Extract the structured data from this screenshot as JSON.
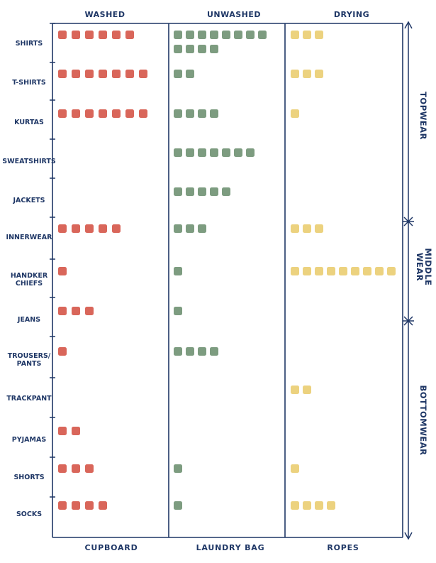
{
  "chart_data": {
    "type": "table",
    "columns": [
      "WASHED",
      "UNWASHED",
      "DRYING"
    ],
    "locations": [
      "CUPBOARD",
      "LAUNDRY BAG",
      "ROPES"
    ],
    "rows": [
      {
        "label": [
          "SHIRTS"
        ],
        "values": [
          6,
          12,
          3
        ]
      },
      {
        "label": [
          "T-SHIRTS"
        ],
        "values": [
          7,
          2,
          3
        ]
      },
      {
        "label": [
          "KURTAS"
        ],
        "values": [
          7,
          4,
          1
        ]
      },
      {
        "label": [
          "SWEATSHIRTS"
        ],
        "values": [
          0,
          7,
          0
        ]
      },
      {
        "label": [
          "JACKETS"
        ],
        "values": [
          0,
          5,
          0
        ]
      },
      {
        "label": [
          "INNERWEAR"
        ],
        "values": [
          5,
          3,
          3
        ]
      },
      {
        "label": [
          "HANDKER",
          "CHIEFS"
        ],
        "values": [
          1,
          1,
          9
        ]
      },
      {
        "label": [
          "JEANS"
        ],
        "values": [
          3,
          1,
          0
        ]
      },
      {
        "label": [
          "TROUSERS/",
          "PANTS"
        ],
        "values": [
          1,
          4,
          0
        ]
      },
      {
        "label": [
          "TRACKPANT"
        ],
        "values": [
          0,
          0,
          2
        ]
      },
      {
        "label": [
          "PYJAMAS"
        ],
        "values": [
          2,
          0,
          0
        ]
      },
      {
        "label": [
          "SHORTS"
        ],
        "values": [
          3,
          1,
          1
        ]
      },
      {
        "label": [
          "SOCKS"
        ],
        "values": [
          4,
          1,
          4
        ]
      }
    ],
    "groups": [
      {
        "label": [
          "TOPWEAR"
        ]
      },
      {
        "label": [
          "MIDDLE",
          "WEAR"
        ]
      },
      {
        "label": [
          "BOTTOMWEAR"
        ]
      }
    ],
    "colors": {
      "washed": "#d9665a",
      "unwashed": "#7d9c80",
      "drying": "#ecd27f",
      "ink": "#1f3766"
    }
  }
}
